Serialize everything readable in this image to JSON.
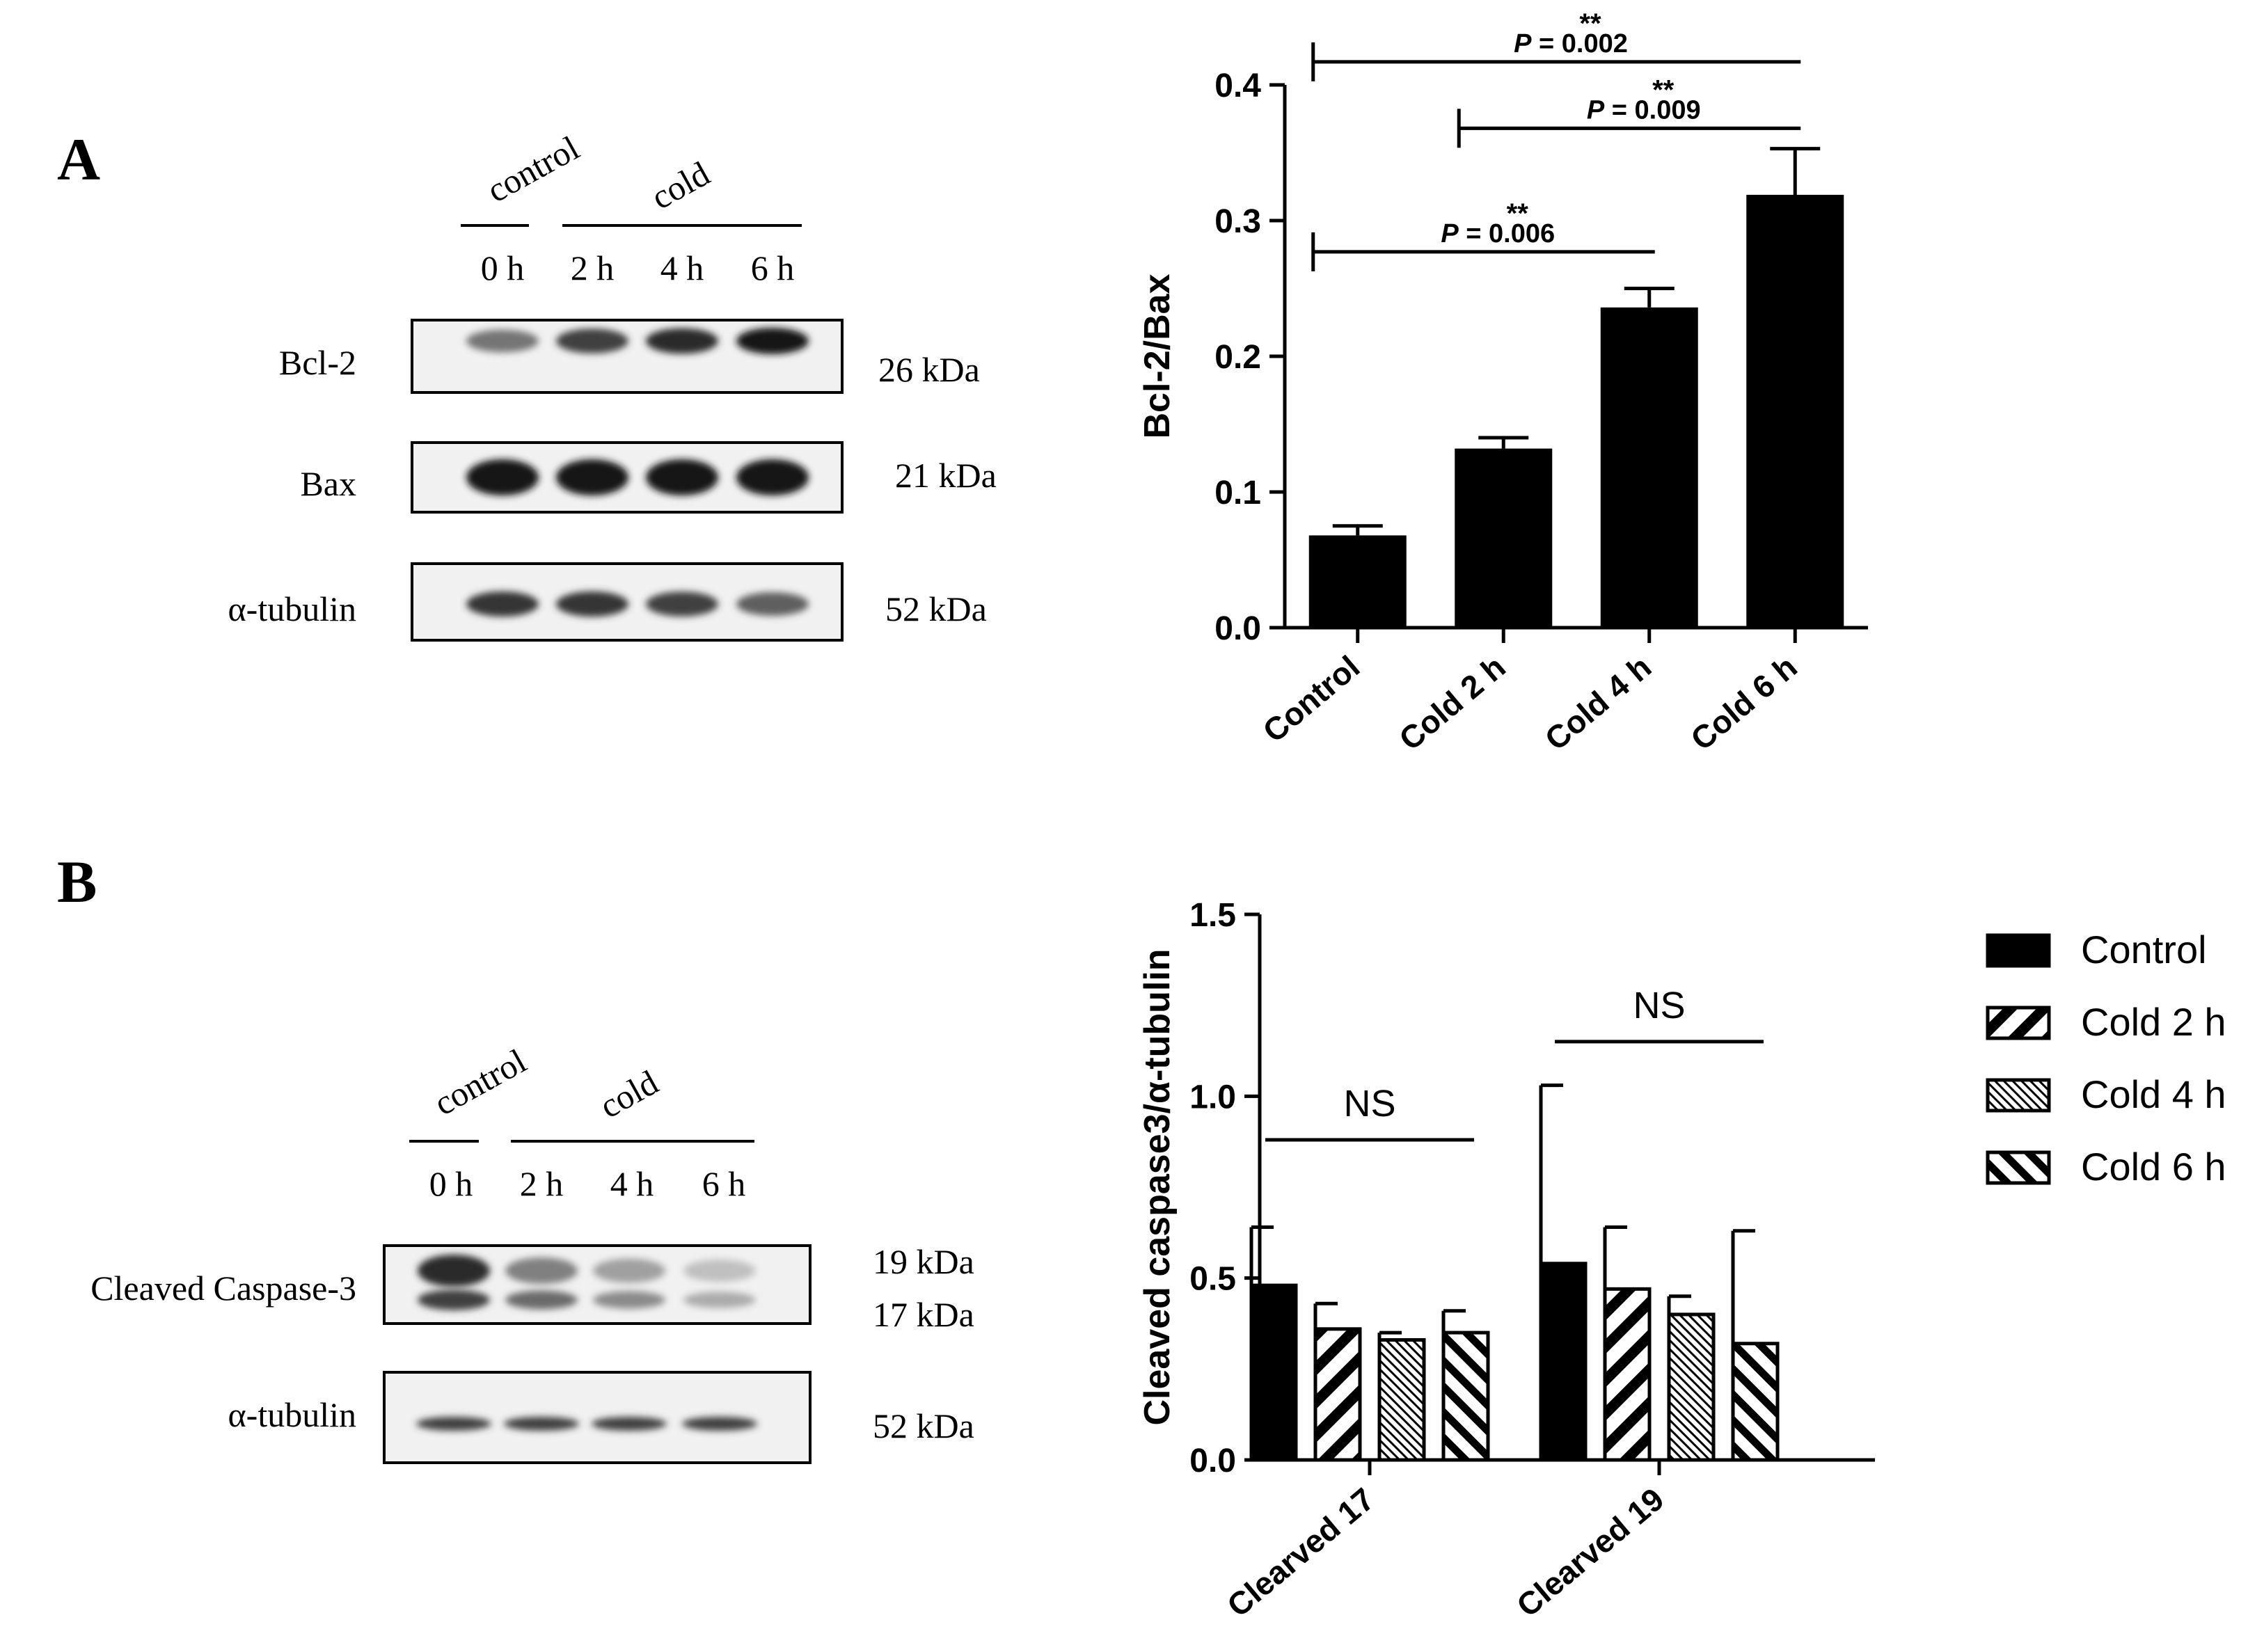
{
  "panel_a": {
    "letter": "A",
    "blot": {
      "group_control": "control",
      "group_cold": "cold",
      "lanes": [
        "0 h",
        "2 h",
        "4 h",
        "6 h"
      ],
      "rows": [
        {
          "label": "Bcl-2",
          "kda": "26 kDa",
          "intensity": [
            0.55,
            0.8,
            0.9,
            1.0
          ]
        },
        {
          "label": "Bax",
          "kda": "21 kDa",
          "intensity": [
            1.0,
            1.0,
            1.0,
            1.0
          ]
        },
        {
          "label": "α-tubulin",
          "kda": "52 kDa",
          "intensity": [
            0.85,
            0.85,
            0.8,
            0.65
          ]
        }
      ]
    }
  },
  "panel_b": {
    "letter": "B",
    "blot": {
      "group_control": "control",
      "group_cold": "cold",
      "lanes": [
        "0 h",
        "2 h",
        "4 h",
        "6 h"
      ],
      "rows": [
        {
          "label": "Cleaved Caspase-3",
          "kda_top": "19 kDa",
          "kda_bottom": "17 kDa",
          "intensity_top": [
            0.9,
            0.5,
            0.35,
            0.2
          ],
          "intensity_bottom": [
            0.8,
            0.6,
            0.45,
            0.3
          ]
        },
        {
          "label": "α-tubulin",
          "kda": "52 kDa",
          "intensity": [
            0.8,
            0.8,
            0.8,
            0.8
          ]
        }
      ]
    }
  },
  "chart_data": [
    {
      "type": "bar",
      "ylabel": "Bcl-2/Bax",
      "ylim": [
        0,
        0.4
      ],
      "yticks": [
        "0.0",
        "0.1",
        "0.2",
        "0.3",
        "0.4"
      ],
      "categories": [
        "Control",
        "Cold 2 h",
        "Cold 4 h",
        "Cold 6 h"
      ],
      "values": [
        0.068,
        0.132,
        0.236,
        0.319
      ],
      "errors": [
        0.007,
        0.008,
        0.014,
        0.034
      ],
      "color": "#000000",
      "significance": [
        {
          "from": 0,
          "to": 3,
          "y": 0.417,
          "stars": "**",
          "label_p": "P",
          "label_rest": " = 0.002"
        },
        {
          "from": 1,
          "to": 3,
          "y": 0.368,
          "stars": "**",
          "label_p": "P",
          "label_rest": " = 0.009"
        },
        {
          "from": 0,
          "to": 2,
          "y": 0.277,
          "stars": "**",
          "label_p": "P",
          "label_rest": " = 0.006"
        }
      ]
    },
    {
      "type": "bar",
      "ylabel": "Cleaved caspase3/α-tubulin",
      "ylim": [
        0,
        1.5
      ],
      "yticks": [
        "0.0",
        "0.5",
        "1.0",
        "1.5"
      ],
      "categories": [
        "Clearved 17",
        "Clearved 19"
      ],
      "series": [
        {
          "name": "Control",
          "pattern": "solid",
          "values": [
            0.48,
            0.54
          ],
          "errors": [
            0.16,
            0.49
          ]
        },
        {
          "name": "Cold 2 h",
          "pattern": "hatch-wide",
          "values": [
            0.36,
            0.47
          ],
          "errors": [
            0.07,
            0.17
          ]
        },
        {
          "name": "Cold 4 h",
          "pattern": "hatch-fine",
          "values": [
            0.33,
            0.4
          ],
          "errors": [
            0.02,
            0.05
          ]
        },
        {
          "name": "Cold 6 h",
          "pattern": "hatch-medium",
          "values": [
            0.35,
            0.32
          ],
          "errors": [
            0.06,
            0.31
          ]
        }
      ],
      "group_annotations": [
        {
          "group": 0,
          "y": 0.88,
          "text": "NS"
        },
        {
          "group": 1,
          "y": 1.15,
          "text": "NS"
        }
      ],
      "legend_position": "right"
    }
  ]
}
